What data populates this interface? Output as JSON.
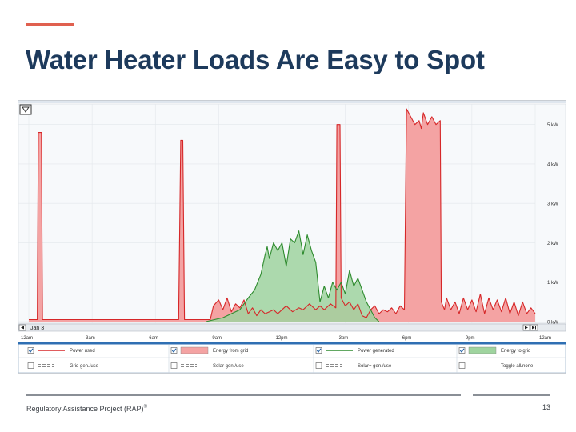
{
  "slide": {
    "title": "Water Heater Loads Are Easy to Spot",
    "footer": "Regulatory Assistance Project (RAP)",
    "footer_mark": "®",
    "page_number": "13",
    "accent_color": "#e0604f",
    "title_color": "#1d3a5c"
  },
  "chart_data": {
    "type": "area",
    "title": "",
    "date_label": "Jan 3",
    "x_ticks": [
      "12am",
      "3am",
      "6am",
      "9am",
      "12pm",
      "3pm",
      "6pm",
      "9pm",
      "12am"
    ],
    "y_ticks": [
      "0 kW",
      "1 kW",
      "2 kW",
      "3 kW",
      "4 kW",
      "5 kW"
    ],
    "y_unit": "kW",
    "xlim_hours": [
      0,
      24
    ],
    "ylim_kw": [
      0,
      5.4
    ],
    "grid": true,
    "legend": {
      "placement": "bottom",
      "items": [
        {
          "label": "Power used",
          "checked": true,
          "style": "line",
          "color": "#d62728"
        },
        {
          "label": "Energy from grid",
          "checked": true,
          "style": "area",
          "color": "#f4a3a3"
        },
        {
          "label": "Power generated",
          "checked": true,
          "style": "line",
          "color": "#2e8b2e"
        },
        {
          "label": "Energy to grid",
          "checked": true,
          "style": "area",
          "color": "#9fd49f"
        },
        {
          "label": "Grid gen./use",
          "checked": false,
          "style": "dashed",
          "color": "#8a8a8a"
        },
        {
          "label": "Solar gen./use",
          "checked": false,
          "style": "dashed",
          "color": "#8a8a8a"
        },
        {
          "label": "Solar+ gen./use",
          "checked": false,
          "style": "dashed",
          "color": "#8a8a8a"
        },
        {
          "label": "Toggle all/none",
          "checked": false,
          "style": "none",
          "color": "#8a8a8a"
        }
      ]
    },
    "series": [
      {
        "name": "Power used",
        "color": "#d62728",
        "fill": "#f4a3a3",
        "points": [
          [
            0.0,
            0.05
          ],
          [
            0.2,
            0.05
          ],
          [
            0.4,
            0.05
          ],
          [
            0.45,
            4.8
          ],
          [
            0.6,
            4.8
          ],
          [
            0.65,
            0.05
          ],
          [
            1.5,
            0.05
          ],
          [
            3.0,
            0.05
          ],
          [
            5.0,
            0.05
          ],
          [
            6.0,
            0.05
          ],
          [
            7.1,
            0.05
          ],
          [
            7.2,
            4.6
          ],
          [
            7.3,
            4.6
          ],
          [
            7.38,
            0.05
          ],
          [
            8.0,
            0.05
          ],
          [
            8.6,
            0.05
          ],
          [
            8.75,
            0.4
          ],
          [
            9.0,
            0.55
          ],
          [
            9.2,
            0.3
          ],
          [
            9.4,
            0.6
          ],
          [
            9.6,
            0.25
          ],
          [
            9.8,
            0.45
          ],
          [
            10.0,
            0.35
          ],
          [
            10.2,
            0.55
          ],
          [
            10.4,
            0.2
          ],
          [
            10.6,
            0.35
          ],
          [
            10.8,
            0.15
          ],
          [
            11.0,
            0.3
          ],
          [
            11.2,
            0.2
          ],
          [
            11.4,
            0.25
          ],
          [
            11.6,
            0.3
          ],
          [
            11.8,
            0.2
          ],
          [
            12.0,
            0.3
          ],
          [
            12.2,
            0.4
          ],
          [
            12.5,
            0.25
          ],
          [
            12.8,
            0.35
          ],
          [
            13.0,
            0.3
          ],
          [
            13.3,
            0.45
          ],
          [
            13.6,
            0.3
          ],
          [
            13.8,
            0.4
          ],
          [
            14.0,
            0.3
          ],
          [
            14.3,
            0.45
          ],
          [
            14.55,
            0.35
          ],
          [
            14.6,
            5.0
          ],
          [
            14.75,
            5.0
          ],
          [
            14.8,
            0.6
          ],
          [
            15.0,
            0.4
          ],
          [
            15.2,
            0.5
          ],
          [
            15.4,
            0.3
          ],
          [
            15.6,
            0.45
          ],
          [
            15.8,
            0.15
          ],
          [
            16.0,
            0.1
          ],
          [
            16.2,
            0.3
          ],
          [
            16.4,
            0.4
          ],
          [
            16.6,
            0.2
          ],
          [
            16.8,
            0.3
          ],
          [
            17.0,
            0.25
          ],
          [
            17.2,
            0.35
          ],
          [
            17.4,
            0.2
          ],
          [
            17.6,
            0.4
          ],
          [
            17.8,
            0.3
          ],
          [
            17.9,
            5.4
          ],
          [
            18.1,
            5.2
          ],
          [
            18.3,
            5.0
          ],
          [
            18.5,
            5.1
          ],
          [
            18.6,
            4.9
          ],
          [
            18.7,
            5.3
          ],
          [
            18.9,
            5.0
          ],
          [
            19.1,
            5.2
          ],
          [
            19.3,
            5.0
          ],
          [
            19.5,
            5.1
          ],
          [
            19.55,
            0.5
          ],
          [
            19.7,
            0.3
          ],
          [
            19.8,
            0.6
          ],
          [
            20.0,
            0.3
          ],
          [
            20.2,
            0.5
          ],
          [
            20.4,
            0.2
          ],
          [
            20.6,
            0.6
          ],
          [
            20.8,
            0.3
          ],
          [
            21.0,
            0.55
          ],
          [
            21.2,
            0.25
          ],
          [
            21.4,
            0.7
          ],
          [
            21.6,
            0.2
          ],
          [
            21.8,
            0.6
          ],
          [
            22.0,
            0.3
          ],
          [
            22.2,
            0.55
          ],
          [
            22.4,
            0.25
          ],
          [
            22.6,
            0.6
          ],
          [
            22.8,
            0.2
          ],
          [
            23.0,
            0.5
          ],
          [
            23.2,
            0.15
          ],
          [
            23.4,
            0.5
          ],
          [
            23.6,
            0.2
          ],
          [
            23.8,
            0.35
          ],
          [
            24.0,
            0.2
          ]
        ]
      },
      {
        "name": "Power generated",
        "color": "#2e8b2e",
        "fill": "#9fd49f",
        "points": [
          [
            8.4,
            0.0
          ],
          [
            8.8,
            0.05
          ],
          [
            9.2,
            0.1
          ],
          [
            9.6,
            0.2
          ],
          [
            10.0,
            0.3
          ],
          [
            10.4,
            0.6
          ],
          [
            10.7,
            0.8
          ],
          [
            11.0,
            1.2
          ],
          [
            11.2,
            1.7
          ],
          [
            11.3,
            1.9
          ],
          [
            11.4,
            1.6
          ],
          [
            11.6,
            2.0
          ],
          [
            11.8,
            1.8
          ],
          [
            12.0,
            2.0
          ],
          [
            12.2,
            1.4
          ],
          [
            12.4,
            2.1
          ],
          [
            12.6,
            2.0
          ],
          [
            12.8,
            2.3
          ],
          [
            13.0,
            1.7
          ],
          [
            13.2,
            2.2
          ],
          [
            13.4,
            1.8
          ],
          [
            13.6,
            1.5
          ],
          [
            13.8,
            0.5
          ],
          [
            14.0,
            0.9
          ],
          [
            14.2,
            0.6
          ],
          [
            14.4,
            1.0
          ],
          [
            14.6,
            0.8
          ],
          [
            14.8,
            1.0
          ],
          [
            15.0,
            0.7
          ],
          [
            15.2,
            1.3
          ],
          [
            15.4,
            0.9
          ],
          [
            15.6,
            1.1
          ],
          [
            15.8,
            0.8
          ],
          [
            16.0,
            0.5
          ],
          [
            16.2,
            0.3
          ],
          [
            16.4,
            0.1
          ],
          [
            16.6,
            0.0
          ]
        ]
      }
    ]
  }
}
